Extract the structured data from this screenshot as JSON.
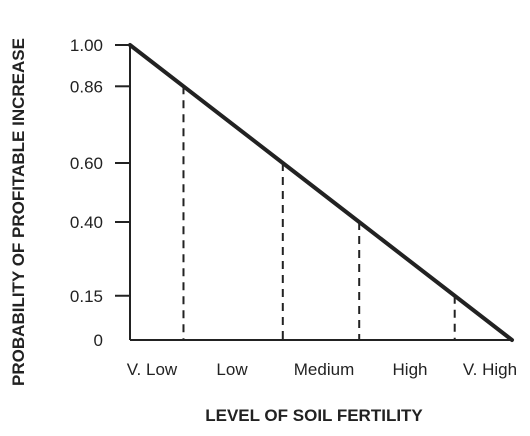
{
  "chart_data": {
    "type": "line",
    "title": "",
    "xlabel": "LEVEL OF SOIL FERTILITY",
    "ylabel": "PROBABILITY OF PROFITABLE INCREASE",
    "ylim": [
      0,
      1.0
    ],
    "y_ticks": [
      {
        "value": 0,
        "label": "0"
      },
      {
        "value": 0.15,
        "label": "0.15"
      },
      {
        "value": 0.4,
        "label": "0.40"
      },
      {
        "value": 0.6,
        "label": "0.60"
      },
      {
        "value": 0.86,
        "label": "0.86"
      },
      {
        "value": 1.0,
        "label": "1.00"
      }
    ],
    "categories": [
      "V. Low",
      "Low",
      "Medium",
      "High",
      "V. High"
    ],
    "series": [
      {
        "x": [
          0,
          0.86,
          0.6,
          0.4,
          0.15,
          0
        ],
        "values": [
          1.0,
          0.86,
          0.6,
          0.4,
          0.15,
          0
        ]
      }
    ],
    "dashed_guides_at": [
      0.86,
      0.6,
      0.4,
      0.15
    ],
    "grid": false,
    "line_color": "#222222"
  }
}
